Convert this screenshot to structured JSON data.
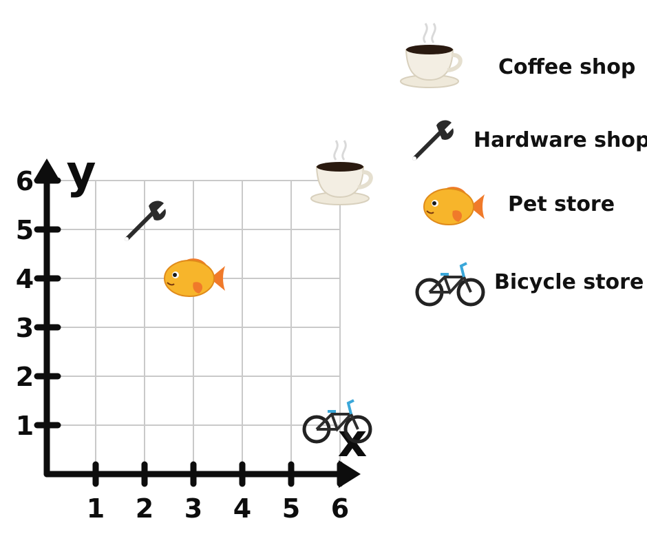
{
  "chart_data": {
    "type": "scatter",
    "x_ticks": [
      "1",
      "2",
      "3",
      "4",
      "5",
      "6"
    ],
    "y_ticks": [
      "1",
      "2",
      "3",
      "4",
      "5",
      "6"
    ],
    "xlabel": "x",
    "ylabel": "y",
    "xlim": [
      0,
      6
    ],
    "ylim": [
      0,
      6
    ],
    "grid": true,
    "points": [
      {
        "name": "Hardware shop",
        "icon": "wrench-icon",
        "x": 2,
        "y": 5
      },
      {
        "name": "Pet store",
        "icon": "goldfish-icon",
        "x": 3,
        "y": 4
      },
      {
        "name": "Coffee shop",
        "icon": "coffee-cup-icon",
        "x": 6,
        "y": 6
      },
      {
        "name": "Bicycle store",
        "icon": "bicycle-icon",
        "x": 6,
        "y": 1
      }
    ]
  },
  "legend": {
    "placement": "right",
    "items": [
      {
        "label": "Coffee shop",
        "icon": "coffee-cup-icon"
      },
      {
        "label": "Hardware shop",
        "icon": "wrench-icon"
      },
      {
        "label": "Pet store",
        "icon": "goldfish-icon"
      },
      {
        "label": "Bicycle store",
        "icon": "bicycle-icon"
      }
    ]
  },
  "colors": {
    "axis": "#0d0d0d",
    "grid": "#c9c9c9",
    "fish": "#f7b52b",
    "fish_fin": "#f07a2a",
    "bike_accent": "#3aa7d9"
  }
}
